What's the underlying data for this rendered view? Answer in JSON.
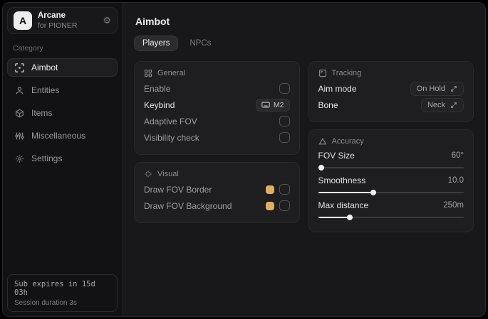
{
  "app": {
    "logo_letter": "A",
    "name": "Arcane",
    "subtitle": "for PIONER"
  },
  "sidebar": {
    "category_label": "Category",
    "items": [
      {
        "label": "Aimbot",
        "icon": "crosshair-scan-icon",
        "active": true
      },
      {
        "label": "Entities",
        "icon": "person-icon",
        "active": false
      },
      {
        "label": "Items",
        "icon": "cube-icon",
        "active": false
      },
      {
        "label": "Miscellaneous",
        "icon": "sliders-icon",
        "active": false
      },
      {
        "label": "Settings",
        "icon": "gear-icon",
        "active": false
      }
    ],
    "footer": {
      "sub_expiry": "Sub expires in 15d 03h",
      "session_duration": "Session duration 3s"
    }
  },
  "main": {
    "title": "Aimbot",
    "tabs": [
      {
        "label": "Players",
        "active": true
      },
      {
        "label": "NPCs",
        "active": false
      }
    ],
    "panels": {
      "general": {
        "title": "General",
        "rows": [
          {
            "label": "Enable",
            "control": "checkbox",
            "checked": false
          },
          {
            "label": "Keybind",
            "control": "keybind",
            "value": "M2"
          },
          {
            "label": "Adaptive FOV",
            "control": "checkbox",
            "checked": false
          },
          {
            "label": "Visibility check",
            "control": "checkbox",
            "checked": false
          }
        ]
      },
      "visual": {
        "title": "Visual",
        "rows": [
          {
            "label": "Draw FOV Border",
            "color": "#e0ae63",
            "checked": false
          },
          {
            "label": "Draw FOV Background",
            "color": "#e0ae63",
            "checked": false
          }
        ]
      },
      "tracking": {
        "title": "Tracking",
        "rows": [
          {
            "label": "Aim mode",
            "value": "On Hold"
          },
          {
            "label": "Bone",
            "value": "Neck"
          }
        ]
      },
      "accuracy": {
        "title": "Accuracy",
        "sliders": [
          {
            "label": "FOV Size",
            "value": "60°",
            "percent": 2
          },
          {
            "label": "Smoothness",
            "value": "10.0",
            "percent": 38
          },
          {
            "label": "Max distance",
            "value": "250m",
            "percent": 22
          }
        ]
      }
    }
  },
  "colors": {
    "accent_swatch": "#e0ae63"
  }
}
